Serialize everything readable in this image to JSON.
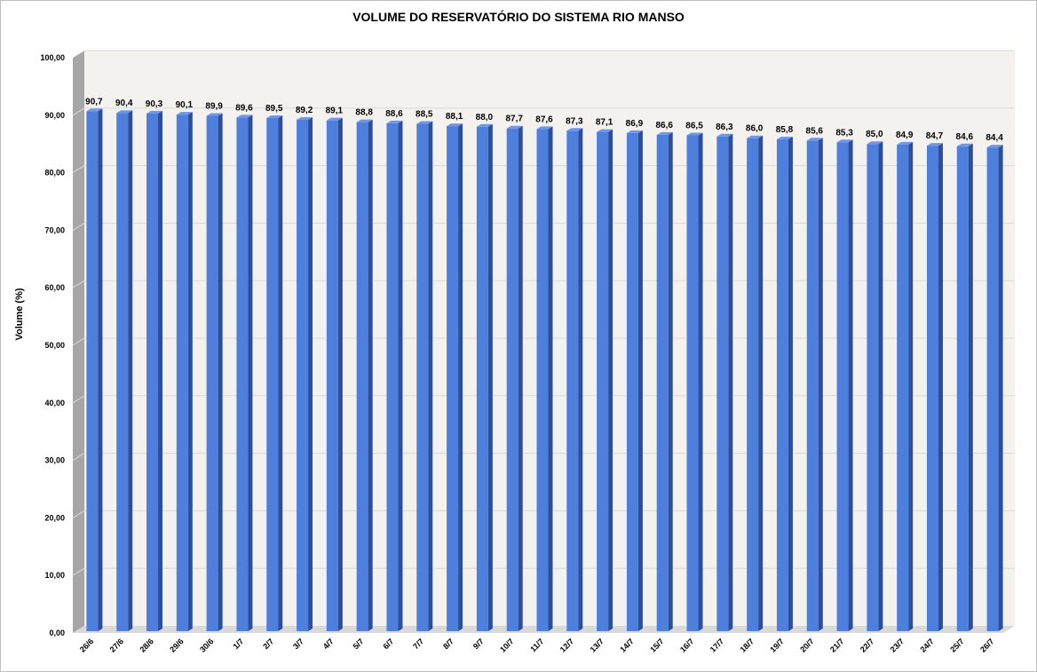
{
  "chart_data": {
    "type": "bar",
    "title": "VOLUME DO RESERVATÓRIO DO SISTEMA RIO MANSO",
    "xlabel": "",
    "ylabel": "Volume (%)",
    "ylim": [
      0,
      100
    ],
    "y_ticks": [
      "0,00",
      "10,00",
      "20,00",
      "30,00",
      "40,00",
      "50,00",
      "60,00",
      "70,00",
      "80,00",
      "90,00",
      "100,00"
    ],
    "grid": true,
    "categories": [
      "26/6",
      "27/6",
      "28/6",
      "29/6",
      "30/6",
      "1/7",
      "2/7",
      "3/7",
      "4/7",
      "5/7",
      "6/7",
      "7/7",
      "8/7",
      "9/7",
      "10/7",
      "11/7",
      "12/7",
      "13/7",
      "14/7",
      "15/7",
      "16/7",
      "17/7",
      "18/7",
      "19/7",
      "20/7",
      "21/7",
      "22/7",
      "23/7",
      "24/7",
      "25/7",
      "26/7"
    ],
    "values": [
      90.7,
      90.4,
      90.3,
      90.1,
      89.9,
      89.6,
      89.5,
      89.2,
      89.1,
      88.8,
      88.6,
      88.5,
      88.1,
      88.0,
      87.7,
      87.6,
      87.3,
      87.1,
      86.9,
      86.6,
      86.5,
      86.3,
      86.0,
      85.8,
      85.6,
      85.3,
      85.0,
      84.9,
      84.7,
      84.6,
      84.4
    ],
    "value_labels": [
      "90,7",
      "90,4",
      "90,3",
      "90,1",
      "89,9",
      "89,6",
      "89,5",
      "89,2",
      "89,1",
      "88,8",
      "88,6",
      "88,5",
      "88,1",
      "88,0",
      "87,7",
      "87,6",
      "87,3",
      "87,1",
      "86,9",
      "86,6",
      "86,5",
      "86,3",
      "86,0",
      "85,8",
      "85,6",
      "85,3",
      "85,0",
      "84,9",
      "84,7",
      "84,6",
      "84,4"
    ],
    "colors": {
      "bar_front": "#4f7fdd",
      "bar_side": "#2d4f9b",
      "bar_top": "#6f97e6",
      "plot_back": "#f3f2ee",
      "plot_floor": "#d9d9d9",
      "plot_wall": "#a6a6a6",
      "gridline": "#d9d9d9"
    }
  }
}
